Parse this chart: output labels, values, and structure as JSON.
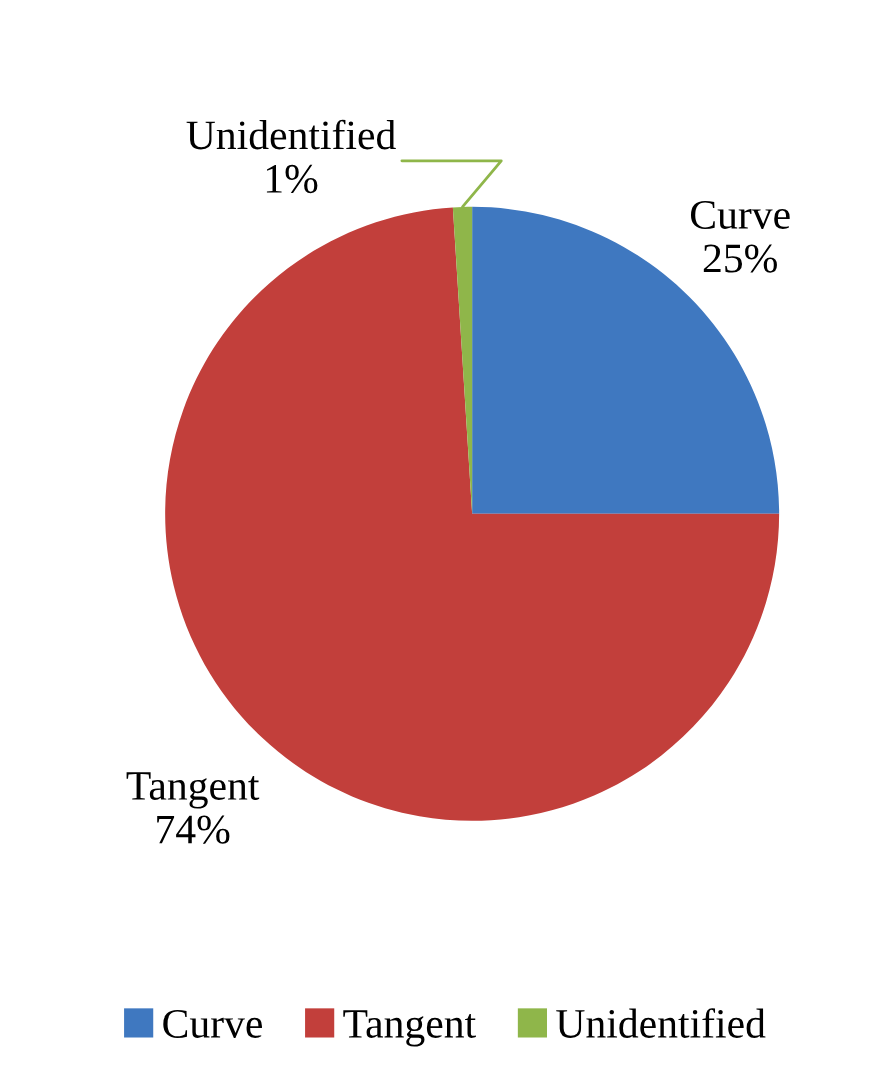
{
  "chart_data": {
    "type": "pie",
    "categories": [
      "Curve",
      "Tangent",
      "Unidentified"
    ],
    "values": [
      25,
      74,
      1
    ],
    "colors": [
      "#3f78c0",
      "#c23f3b",
      "#8fb64a"
    ],
    "value_labels": [
      "25%",
      "74%",
      "1%"
    ],
    "legend": "bottom"
  }
}
